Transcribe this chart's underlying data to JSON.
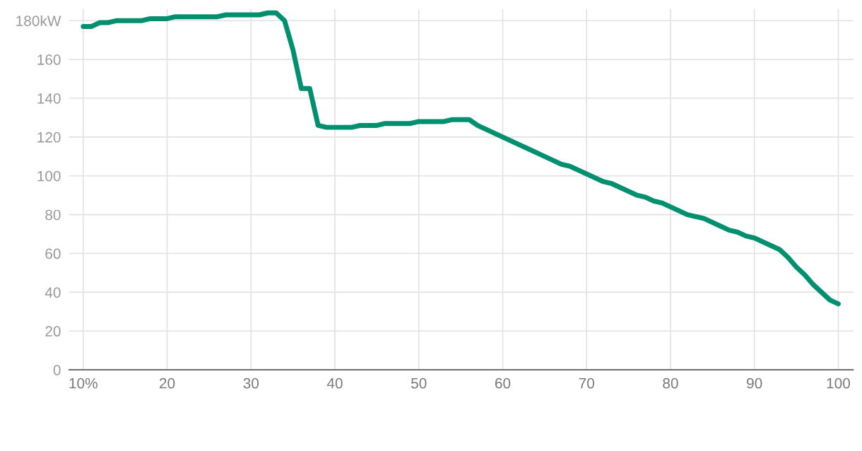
{
  "chart_data": {
    "type": "line",
    "x": [
      10,
      11,
      12,
      13,
      14,
      17,
      18,
      20,
      21,
      26,
      27,
      31,
      32,
      33,
      34,
      35,
      36,
      37,
      38,
      39,
      42,
      43,
      45,
      46,
      49,
      50,
      53,
      54,
      56,
      57,
      60,
      67,
      68,
      72,
      73,
      76,
      77,
      78,
      79,
      82,
      84,
      87,
      88,
      89,
      90,
      93,
      94,
      95,
      96,
      97,
      98,
      99,
      100
    ],
    "series": [
      {
        "color": "#00906f",
        "values": [
          177,
          177,
          179,
          179,
          180,
          180,
          181,
          181,
          182,
          182,
          183,
          183,
          184,
          184,
          180,
          165,
          145,
          145,
          126,
          125,
          125,
          126,
          126,
          127,
          127,
          128,
          128,
          129,
          129,
          126,
          120,
          106,
          105,
          97,
          96,
          90,
          89,
          87,
          86,
          80,
          78,
          72,
          71,
          69,
          68,
          62,
          58,
          53,
          49,
          44,
          40,
          36,
          34
        ]
      }
    ],
    "xlim": [
      8.3,
      101.8
    ],
    "xticks": [
      {
        "value": 10,
        "label": "10%"
      },
      20,
      30,
      40,
      50,
      60,
      70,
      80,
      90,
      100
    ],
    "ylim": [
      0,
      186
    ],
    "yticks": [
      0,
      20,
      40,
      60,
      80,
      100,
      120,
      140,
      160,
      {
        "value": 180,
        "label": "180kW"
      }
    ],
    "grid": true,
    "marker": "none",
    "line_style": "solid"
  }
}
